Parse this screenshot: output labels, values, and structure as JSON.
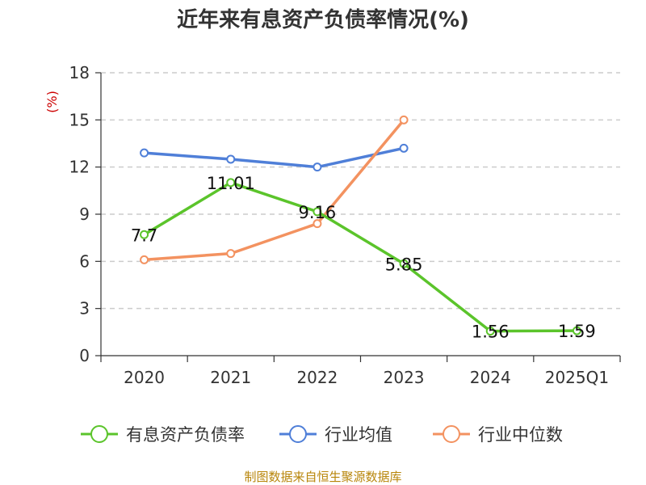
{
  "chart_data": {
    "type": "line",
    "title": "近年来有息资产负债率情况(%)",
    "y_unit": "(%)",
    "categories": [
      "2020",
      "2021",
      "2022",
      "2023",
      "2024",
      "2025Q1"
    ],
    "ylim": [
      0,
      18
    ],
    "yticks": [
      0,
      3,
      6,
      9,
      12,
      15,
      18
    ],
    "grid": true,
    "legend_position": "bottom",
    "series": [
      {
        "name": "有息资产负债率",
        "color": "#5bc42b",
        "values": [
          7.7,
          11.01,
          9.16,
          5.85,
          1.56,
          1.59
        ],
        "labels": [
          "7.7",
          "11.01",
          "9.16",
          "5.85",
          "1.56",
          "1.59"
        ]
      },
      {
        "name": "行业均值",
        "color": "#4f7fd8",
        "values": [
          12.9,
          12.5,
          12.0,
          13.2,
          null,
          null
        ]
      },
      {
        "name": "行业中位数",
        "color": "#f39260",
        "values": [
          6.1,
          6.5,
          8.4,
          15.0,
          null,
          null
        ]
      }
    ]
  },
  "source": "制图数据来自恒生聚源数据库"
}
